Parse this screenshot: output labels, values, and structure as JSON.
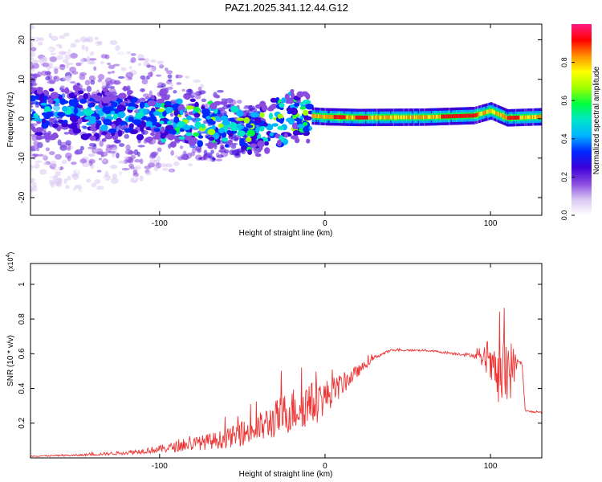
{
  "title": "PAZ1.2025.341.12.44.G12",
  "chart_data": [
    {
      "type": "heatmap",
      "id": "spectrogram",
      "xlabel": "Height of straight line (km)",
      "ylabel": "Frequency (Hz)",
      "xlim": [
        -178,
        131
      ],
      "ylim": [
        -24.5,
        24
      ],
      "xticks": [
        -100,
        0,
        100
      ],
      "xtick_labels": [
        "-100",
        "0",
        "100"
      ],
      "yticks": [
        -20,
        -10,
        0,
        10,
        20
      ],
      "ytick_labels": [
        "-20",
        "-10",
        "0",
        "10",
        "20"
      ],
      "colorbar": {
        "label": "Normalized spectral amplitude",
        "range": [
          0.0,
          1.0
        ],
        "ticks": [
          0.0,
          0.2,
          0.4,
          0.6,
          0.8
        ],
        "tick_labels": [
          "0.0",
          "0.2",
          "0.4",
          "0.6",
          "0.8"
        ],
        "colormap": [
          "#ffffff",
          "#d9c6f2",
          "#8a4be0",
          "#3b00d8",
          "#0028ff",
          "#00b4ff",
          "#00e6c8",
          "#00ff40",
          "#a0ff00",
          "#ffff00",
          "#ff9000",
          "#ff0000",
          "#ff1a80"
        ]
      },
      "ridge": {
        "description_points_x": [
          -170,
          -130,
          -100,
          -80,
          -60,
          -40,
          -20,
          0,
          20,
          60,
          90,
          100,
          110,
          131
        ],
        "description_points_y": [
          2,
          1,
          0.5,
          -1,
          -2,
          -3,
          1,
          0.5,
          0.3,
          0.4,
          0.8,
          2,
          0.2,
          0.5
        ]
      }
    },
    {
      "type": "line",
      "id": "snr",
      "xlabel": "Height of straight line (km)",
      "ylabel": "SNR (10 * v/v)",
      "multiplier": "(x10",
      "multiplier_exp": "4",
      "multiplier_close": ")",
      "xlim": [
        -178,
        131
      ],
      "ylim": [
        0,
        1.12
      ],
      "xticks": [
        -100,
        0,
        100
      ],
      "xtick_labels": [
        "-100",
        "0",
        "100"
      ],
      "yticks": [
        0.2,
        0.4,
        0.6,
        0.8,
        1
      ],
      "ytick_labels": [
        "0.2",
        "0.4",
        "0.6",
        "0.8",
        "1"
      ],
      "color": "#ee3333",
      "envelope": {
        "x": [
          -178,
          -150,
          -120,
          -100,
          -80,
          -60,
          -40,
          -25,
          -15,
          -5,
          0,
          10,
          20,
          30,
          40,
          60,
          80,
          90,
          98,
          105,
          110,
          117,
          119,
          121,
          131
        ],
        "mean": [
          0.01,
          0.015,
          0.03,
          0.05,
          0.08,
          0.11,
          0.17,
          0.25,
          0.3,
          0.32,
          0.35,
          0.42,
          0.5,
          0.58,
          0.62,
          0.62,
          0.6,
          0.59,
          0.55,
          0.45,
          0.5,
          0.55,
          0.55,
          0.27,
          0.26
        ],
        "spread": [
          0.005,
          0.01,
          0.02,
          0.04,
          0.07,
          0.1,
          0.16,
          0.22,
          0.25,
          0.22,
          0.18,
          0.12,
          0.06,
          0.02,
          0.01,
          0.01,
          0.015,
          0.02,
          0.12,
          0.3,
          0.45,
          0.02,
          0.02,
          0.01,
          0.01
        ]
      }
    }
  ]
}
